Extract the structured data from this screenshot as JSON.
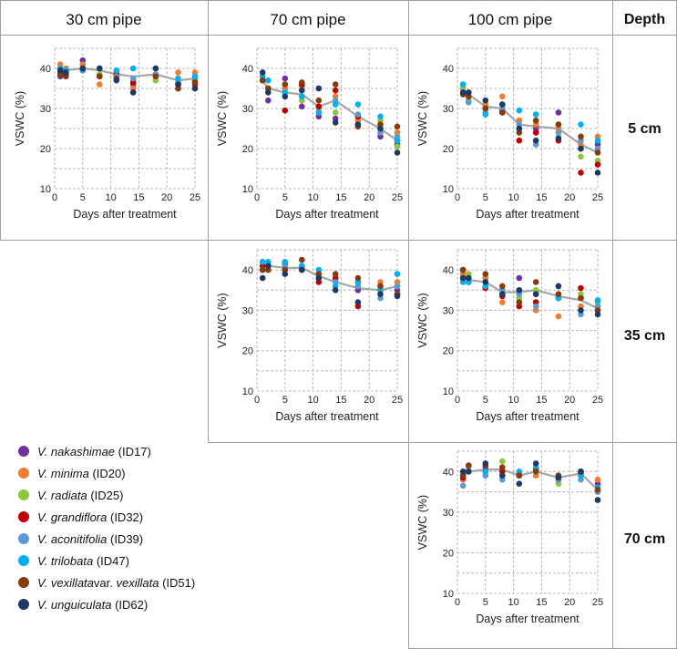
{
  "headers": {
    "pipe30": "30 cm pipe",
    "pipe70": "70 cm pipe",
    "pipe100": "100 cm pipe",
    "depth": "Depth"
  },
  "depths": [
    "5 cm",
    "35 cm",
    "70 cm"
  ],
  "series": [
    {
      "id": "ID17",
      "species": "V. nakashimae",
      "suffix": "",
      "label_id": "(ID17)",
      "color": "#7030a0"
    },
    {
      "id": "ID20",
      "species": "V. minima",
      "suffix": "",
      "label_id": "(ID20)",
      "color": "#ed7d31"
    },
    {
      "id": "ID25",
      "species": "V. radiata",
      "suffix": "",
      "label_id": "(ID25)",
      "color": "#8dc63f"
    },
    {
      "id": "ID32",
      "species": "V. grandiflora",
      "suffix": "",
      "label_id": "(ID32)",
      "color": "#c00000"
    },
    {
      "id": "ID39",
      "species": "V. aconitifolia",
      "suffix": "",
      "label_id": "(ID39)",
      "color": "#5b9bd5"
    },
    {
      "id": "ID47",
      "species": "V. trilobata",
      "suffix": "",
      "label_id": "(ID47)",
      "color": "#00b0f0"
    },
    {
      "id": "ID51",
      "species": "V. vexillata",
      "suffix": " var. vexillata",
      "label_id": "(ID51)",
      "color": "#843c0c"
    },
    {
      "id": "ID62",
      "species": "V. unguiculata",
      "suffix": "",
      "label_id": "(ID62)",
      "color": "#203864"
    }
  ],
  "mean_line_color": "#a6a6a6",
  "chart_data": [
    {
      "type": "scatter",
      "pipe": "30 cm pipe",
      "depth": "5 cm",
      "xlabel": "Days after treatment",
      "ylabel": "VSWC (%)",
      "xlim": [
        0,
        25
      ],
      "ylim": [
        10,
        45
      ],
      "xticks": [
        0,
        5,
        10,
        15,
        20,
        25
      ],
      "yticks": [
        10,
        20,
        30,
        40
      ],
      "grid": true,
      "x": [
        1,
        2,
        5,
        8,
        11,
        14,
        18,
        22,
        25
      ],
      "mean": [
        39,
        39.5,
        40,
        39.5,
        38.5,
        38,
        38.5,
        37,
        37.5
      ],
      "series": [
        {
          "id": "ID17",
          "values": [
            38,
            39,
            42,
            40,
            39,
            36,
            38,
            36,
            37
          ]
        },
        {
          "id": "ID20",
          "values": [
            41,
            40,
            41,
            36,
            39,
            35,
            37,
            39,
            39
          ]
        },
        {
          "id": "ID25",
          "values": [
            39,
            38.5,
            40,
            38.5,
            38,
            37,
            37,
            37,
            37.5
          ]
        },
        {
          "id": "ID32",
          "values": [
            39,
            38.5,
            39.5,
            38,
            38.5,
            36.5,
            38.5,
            35,
            36
          ]
        },
        {
          "id": "ID39",
          "values": [
            39.5,
            39,
            40,
            40,
            38,
            37.5,
            38.5,
            36.5,
            37
          ]
        },
        {
          "id": "ID47",
          "values": [
            40,
            39.5,
            39.5,
            40,
            39.5,
            40,
            40,
            37.5,
            38
          ]
        },
        {
          "id": "ID51",
          "values": [
            38.5,
            38,
            40,
            38,
            37.5,
            34,
            38,
            35,
            36.5
          ]
        },
        {
          "id": "ID62",
          "values": [
            39.5,
            39,
            40,
            40,
            37,
            34,
            40,
            36,
            35
          ]
        }
      ]
    },
    {
      "type": "scatter",
      "pipe": "70 cm pipe",
      "depth": "5 cm",
      "xlabel": "Days after treatment",
      "ylabel": "VSWC (%)",
      "xlim": [
        0,
        25
      ],
      "ylim": [
        10,
        45
      ],
      "xticks": [
        0,
        5,
        10,
        15,
        20,
        25
      ],
      "yticks": [
        10,
        20,
        30,
        40
      ],
      "grid": true,
      "x": [
        1,
        2,
        5,
        8,
        11,
        14,
        18,
        22,
        25
      ],
      "mean": [
        37,
        35,
        34,
        33.5,
        30.5,
        32,
        28,
        25,
        22
      ],
      "series": [
        {
          "id": "ID17",
          "values": [
            37,
            32,
            37.5,
            30.5,
            28,
            27.5,
            27,
            23,
            21
          ]
        },
        {
          "id": "ID20",
          "values": [
            37,
            35,
            35,
            35.5,
            29,
            33,
            27,
            26,
            24
          ]
        },
        {
          "id": "ID25",
          "values": [
            37,
            35,
            34,
            32,
            30,
            29,
            28,
            27,
            20.5
          ]
        },
        {
          "id": "ID32",
          "values": [
            37,
            35,
            29.5,
            36,
            30.5,
            34.5,
            28,
            24,
            22
          ]
        },
        {
          "id": "ID39",
          "values": [
            38,
            35,
            34,
            33,
            29,
            32,
            28.5,
            24,
            23
          ]
        },
        {
          "id": "ID47",
          "values": [
            38,
            37,
            34,
            33,
            29,
            31,
            31,
            28,
            22
          ]
        },
        {
          "id": "ID51",
          "values": [
            37,
            35,
            36,
            36.5,
            32,
            36,
            25.5,
            26,
            25.5
          ]
        },
        {
          "id": "ID62",
          "values": [
            39,
            34,
            33,
            34.5,
            35,
            26.5,
            26,
            25,
            19
          ]
        }
      ]
    },
    {
      "type": "scatter",
      "pipe": "100 cm pipe",
      "depth": "5 cm",
      "xlabel": "Days after treatment",
      "ylabel": "VSWC (%)",
      "xlim": [
        0,
        25
      ],
      "ylim": [
        10,
        45
      ],
      "xticks": [
        0,
        5,
        10,
        15,
        20,
        25
      ],
      "yticks": [
        10,
        20,
        30,
        40
      ],
      "grid": true,
      "x": [
        1,
        2,
        5,
        8,
        11,
        14,
        18,
        22,
        25
      ],
      "mean": [
        34.5,
        33.5,
        30.5,
        30,
        26,
        25.5,
        25,
        21,
        19
      ],
      "series": [
        {
          "id": "ID17",
          "values": [
            34,
            32,
            31,
            29.5,
            27,
            25,
            29,
            20,
            21
          ]
        },
        {
          "id": "ID20",
          "values": [
            35,
            34,
            31,
            33,
            27,
            26,
            25,
            21,
            23
          ]
        },
        {
          "id": "ID25",
          "values": [
            35,
            32,
            30,
            30,
            25,
            24,
            23,
            18,
            17
          ]
        },
        {
          "id": "ID32",
          "values": [
            34,
            33,
            30,
            29,
            22,
            24,
            22,
            14,
            16
          ]
        },
        {
          "id": "ID39",
          "values": [
            34,
            31.5,
            29,
            30,
            26,
            21,
            24,
            22,
            20
          ]
        },
        {
          "id": "ID47",
          "values": [
            36,
            34,
            28.5,
            31,
            29.5,
            28.5,
            26,
            26,
            22
          ]
        },
        {
          "id": "ID51",
          "values": [
            33.5,
            33,
            30,
            29,
            24,
            27,
            26,
            23,
            19
          ]
        },
        {
          "id": "ID62",
          "values": [
            34,
            34,
            32,
            31,
            25,
            22,
            22.5,
            20,
            14
          ]
        }
      ]
    },
    {
      "type": "scatter",
      "pipe": "70 cm pipe",
      "depth": "35 cm",
      "xlabel": "Days after treatment",
      "ylabel": "VSWC (%)",
      "xlim": [
        0,
        25
      ],
      "ylim": [
        10,
        45
      ],
      "xticks": [
        0,
        5,
        10,
        15,
        20,
        25
      ],
      "yticks": [
        10,
        20,
        30,
        40
      ],
      "grid": true,
      "x": [
        1,
        2,
        5,
        8,
        11,
        14,
        18,
        22,
        25
      ],
      "mean": [
        41,
        41,
        40.5,
        40.5,
        38.5,
        37,
        35.5,
        35,
        36
      ],
      "series": [
        {
          "id": "ID17",
          "values": [
            40,
            41,
            40,
            41,
            38,
            37,
            35,
            36,
            35
          ]
        },
        {
          "id": "ID20",
          "values": [
            42,
            42,
            42,
            41,
            38,
            36,
            37,
            37,
            37
          ]
        },
        {
          "id": "ID25",
          "values": [
            41,
            41,
            41,
            40,
            38,
            37.5,
            36,
            35,
            36
          ]
        },
        {
          "id": "ID32",
          "values": [
            41,
            40,
            41.5,
            40.5,
            37,
            38,
            31,
            35,
            34
          ]
        },
        {
          "id": "ID39",
          "values": [
            40,
            40,
            41,
            40,
            39,
            37,
            36,
            33,
            36
          ]
        },
        {
          "id": "ID47",
          "values": [
            42,
            42,
            42,
            41,
            40,
            36,
            37,
            35,
            39
          ]
        },
        {
          "id": "ID51",
          "values": [
            40,
            40,
            40,
            42.5,
            39,
            39,
            38,
            36,
            34
          ]
        },
        {
          "id": "ID62",
          "values": [
            38,
            41,
            39,
            40,
            38,
            35,
            32,
            34,
            33.5
          ]
        }
      ]
    },
    {
      "type": "scatter",
      "pipe": "100 cm pipe",
      "depth": "35 cm",
      "xlabel": "Days after treatment",
      "ylabel": "VSWC (%)",
      "xlim": [
        0,
        25
      ],
      "ylim": [
        10,
        45
      ],
      "xticks": [
        0,
        5,
        10,
        15,
        20,
        25
      ],
      "yticks": [
        10,
        20,
        30,
        40
      ],
      "grid": true,
      "x": [
        1,
        2,
        5,
        8,
        11,
        14,
        18,
        22,
        25
      ],
      "mean": [
        38.5,
        37.5,
        37,
        34.5,
        34.5,
        35,
        33.5,
        32.5,
        30.5
      ],
      "series": [
        {
          "id": "ID17",
          "values": [
            38,
            38,
            38,
            35,
            38,
            35,
            36,
            33,
            31
          ]
        },
        {
          "id": "ID20",
          "values": [
            39,
            38,
            38,
            32,
            32,
            30,
            28.5,
            31,
            31
          ]
        },
        {
          "id": "ID25",
          "values": [
            38,
            39,
            37,
            35,
            33,
            35,
            34,
            34,
            32
          ]
        },
        {
          "id": "ID32",
          "values": [
            40,
            37,
            35.5,
            33.5,
            31,
            32,
            33,
            35.5,
            30
          ]
        },
        {
          "id": "ID39",
          "values": [
            37,
            37,
            37,
            35,
            34,
            31,
            34,
            29,
            31
          ]
        },
        {
          "id": "ID47",
          "values": [
            37,
            37,
            36,
            34,
            35,
            34,
            33,
            30,
            32.5
          ]
        },
        {
          "id": "ID51",
          "values": [
            40,
            38,
            39,
            36,
            32,
            37,
            34,
            33,
            30
          ]
        },
        {
          "id": "ID62",
          "values": [
            38,
            38,
            37,
            34,
            35,
            34,
            36,
            30,
            29
          ]
        }
      ]
    },
    {
      "type": "scatter",
      "pipe": "100 cm pipe",
      "depth": "70 cm",
      "xlabel": "Days after treatment",
      "ylabel": "VSWC (%)",
      "xlim": [
        0,
        25
      ],
      "ylim": [
        10,
        45
      ],
      "xticks": [
        0,
        5,
        10,
        15,
        20,
        25
      ],
      "yticks": [
        10,
        20,
        30,
        40
      ],
      "grid": true,
      "x": [
        1,
        2,
        5,
        8,
        11,
        14,
        18,
        22,
        25
      ],
      "mean": [
        39,
        40,
        40.5,
        40.5,
        39,
        40,
        38.5,
        39.5,
        35.5
      ],
      "series": [
        {
          "id": "ID17",
          "values": [
            39,
            40,
            41,
            41,
            39,
            40,
            39,
            40,
            37
          ]
        },
        {
          "id": "ID20",
          "values": [
            38,
            40,
            39,
            40,
            39.5,
            39,
            38,
            39,
            38
          ]
        },
        {
          "id": "ID25",
          "values": [
            39,
            41,
            40,
            42.5,
            39,
            40,
            37,
            40,
            33
          ]
        },
        {
          "id": "ID32",
          "values": [
            38.5,
            40,
            40,
            40,
            39,
            40.5,
            38,
            39.5,
            35
          ]
        },
        {
          "id": "ID39",
          "values": [
            36.5,
            40,
            39,
            38,
            39,
            40,
            38,
            38,
            35
          ]
        },
        {
          "id": "ID47",
          "values": [
            39,
            40,
            40,
            39,
            40,
            41,
            39,
            39,
            36
          ]
        },
        {
          "id": "ID51",
          "values": [
            39,
            41.5,
            41.5,
            41,
            39,
            40,
            39,
            40,
            35.5
          ]
        },
        {
          "id": "ID62",
          "values": [
            40,
            40,
            42,
            39,
            37,
            42,
            38.5,
            40,
            33
          ]
        }
      ]
    }
  ]
}
